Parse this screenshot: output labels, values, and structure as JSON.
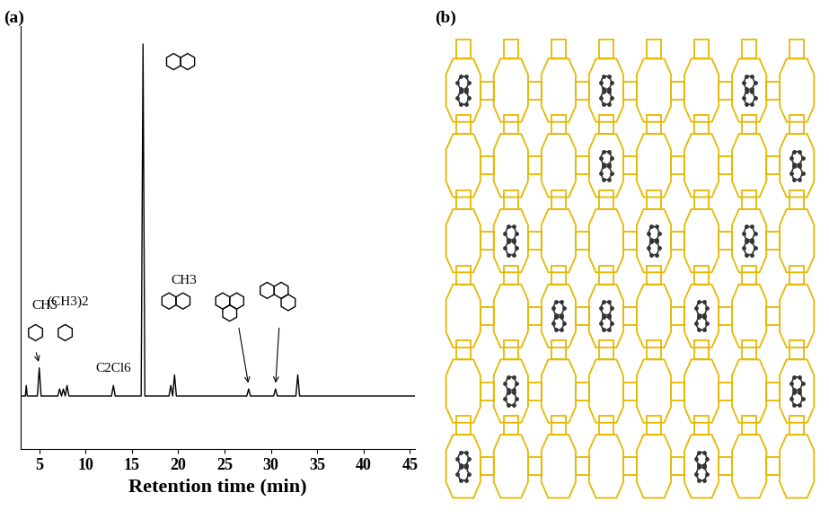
{
  "chart_data": {
    "type": "line",
    "x_label": "Retention time (min)",
    "x": [
      3.0,
      3.5,
      3.6,
      3.7,
      4.8,
      5.0,
      5.2,
      7.0,
      7.2,
      7.4,
      7.6,
      7.8,
      8.0,
      8.2,
      12.8,
      13.0,
      13.2,
      16.0,
      16.2,
      16.4,
      19.0,
      19.2,
      19.4,
      19.6,
      19.8,
      27.4,
      27.6,
      27.8,
      30.3,
      30.5,
      30.7,
      32.7,
      32.9,
      33.1,
      45.5
    ],
    "values": [
      0,
      0,
      0.03,
      0,
      0,
      0.08,
      0,
      0,
      0.02,
      0,
      0.02,
      0,
      0.03,
      0,
      0,
      0.03,
      0,
      0,
      1.0,
      0,
      0,
      0.03,
      0,
      0.06,
      0,
      0,
      0.02,
      0,
      0,
      0.02,
      0,
      0,
      0.06,
      0,
      0
    ],
    "color": "#000000",
    "xlim": [
      3,
      45.5
    ],
    "xticks": [
      5,
      10,
      15,
      20,
      25,
      30,
      35,
      40,
      45
    ],
    "ylim": [
      -0.15,
      1.05
    ],
    "tick_labels": "x",
    "annotations": [
      {
        "text": "CH3",
        "x": 5.0
      },
      {
        "text": "(CH3)2",
        "x": 7.6
      },
      {
        "text": "C2Cl6",
        "x": 13.0
      },
      {
        "text": "CH3",
        "x": 19.6
      }
    ]
  },
  "panel_labels": [
    "(a)",
    "(b)"
  ]
}
